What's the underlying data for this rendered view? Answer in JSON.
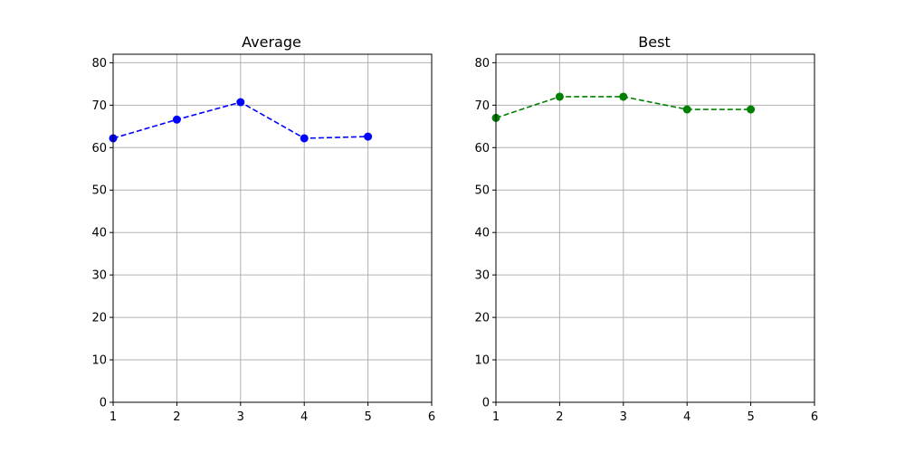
{
  "colors": {
    "background": "#ffffff",
    "axes": "#000000",
    "grid": "#b0b0b0"
  },
  "chart_data": [
    {
      "type": "line",
      "title": "Average",
      "xlabel": "",
      "ylabel": "",
      "xlim": [
        1,
        6
      ],
      "ylim": [
        0,
        82
      ],
      "xticks": [
        1,
        2,
        3,
        4,
        5,
        6
      ],
      "yticks": [
        0,
        10,
        20,
        30,
        40,
        50,
        60,
        70,
        80
      ],
      "grid": true,
      "series": [
        {
          "x": [
            1,
            2,
            3,
            4,
            5
          ],
          "y": [
            62.2,
            66.6,
            70.7,
            62.2,
            62.6
          ],
          "color": "#0000ff",
          "line_style": "dashed",
          "marker": "circle"
        }
      ]
    },
    {
      "type": "line",
      "title": "Best",
      "xlabel": "",
      "ylabel": "",
      "xlim": [
        1,
        6
      ],
      "ylim": [
        0,
        82
      ],
      "xticks": [
        1,
        2,
        3,
        4,
        5,
        6
      ],
      "yticks": [
        0,
        10,
        20,
        30,
        40,
        50,
        60,
        70,
        80
      ],
      "grid": true,
      "series": [
        {
          "x": [
            1,
            2,
            3,
            4,
            5
          ],
          "y": [
            67,
            72,
            72,
            69,
            69
          ],
          "color": "#008000",
          "line_style": "dashed",
          "marker": "circle"
        }
      ]
    }
  ]
}
